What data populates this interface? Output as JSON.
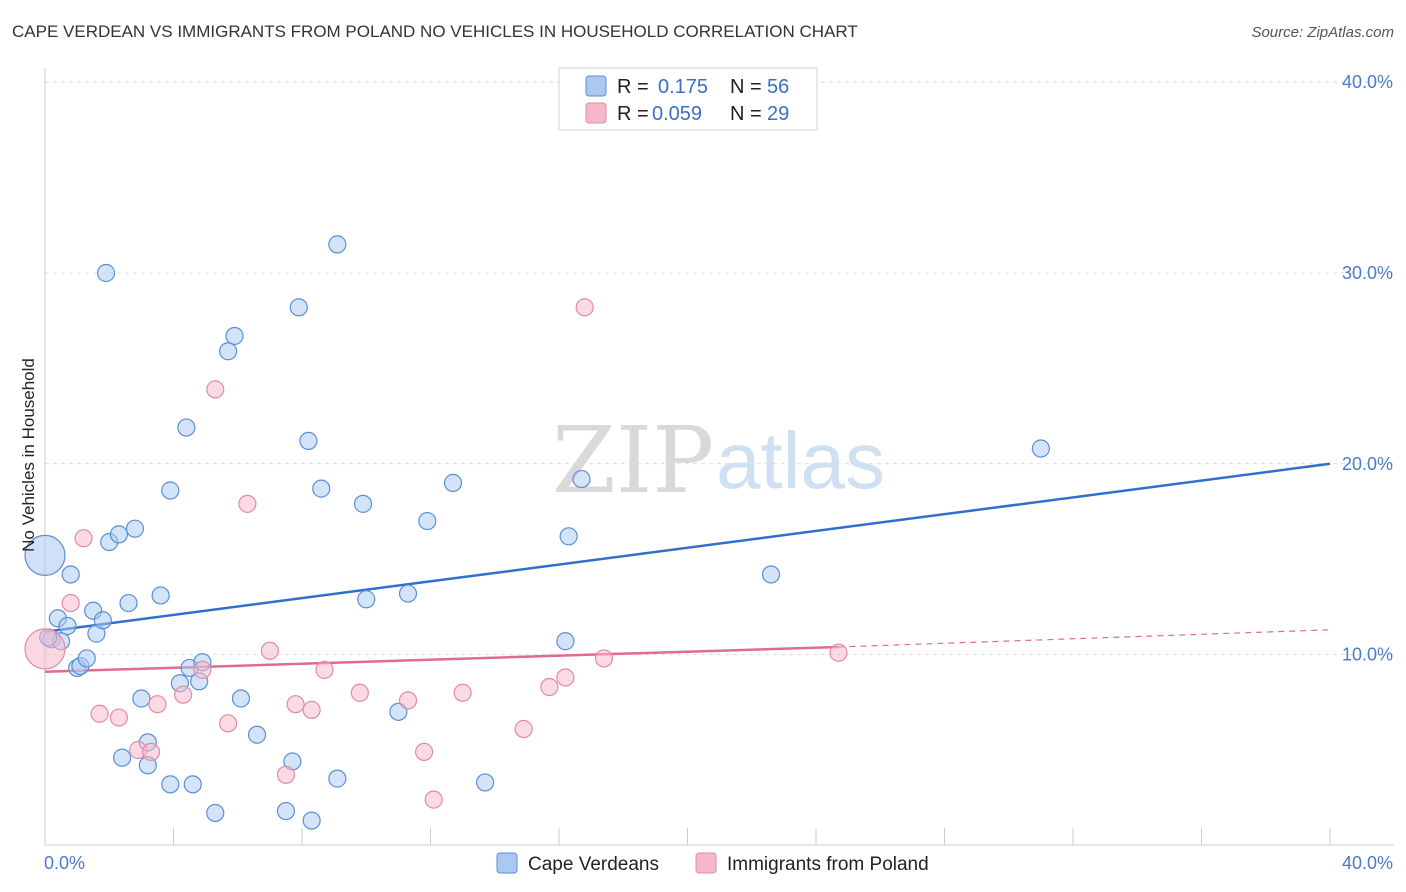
{
  "title": "CAPE VERDEAN VS IMMIGRANTS FROM POLAND NO VEHICLES IN HOUSEHOLD CORRELATION CHART",
  "source": "Source: ZipAtlas.com",
  "watermark": {
    "zip": "ZIP",
    "atlas": "atlas"
  },
  "legend": {
    "r_label": "R =",
    "n_label": "N =",
    "rows": [
      {
        "r": "0.175",
        "n": "56",
        "color": "#a9c9f1"
      },
      {
        "r": "0.059",
        "n": "29",
        "color": "#f5b8ca"
      }
    ]
  },
  "chart_data": {
    "type": "scatter",
    "title": "CAPE VERDEAN VS IMMIGRANTS FROM POLAND NO VEHICLES IN HOUSEHOLD CORRELATION CHART",
    "xlabel": "",
    "ylabel": "No Vehicles in Household",
    "xlim": [
      0,
      40
    ],
    "ylim": [
      0,
      40
    ],
    "x_tick_labels": [
      "0.0%",
      "40.0%"
    ],
    "y_tick_labels": [
      "10.0%",
      "20.0%",
      "30.0%",
      "40.0%"
    ],
    "y_ticks": [
      10,
      20,
      30,
      40
    ],
    "grid": true,
    "legend_position": "top-center",
    "series": [
      {
        "name": "Cape Verdeans",
        "color": "#a9c9f1",
        "stroke": "#5b8fd6",
        "trend": {
          "x": [
            0,
            40
          ],
          "y": [
            11.2,
            20.0
          ],
          "color": "#2f6fce"
        },
        "points": [
          [
            0.0,
            15.2
          ],
          [
            0.2,
            10.8
          ],
          [
            0.4,
            11.9
          ],
          [
            0.5,
            10.7
          ],
          [
            0.7,
            11.5
          ],
          [
            0.8,
            14.2
          ],
          [
            1.0,
            9.3
          ],
          [
            1.1,
            9.4
          ],
          [
            1.3,
            9.8
          ],
          [
            1.5,
            12.3
          ],
          [
            1.6,
            11.1
          ],
          [
            1.8,
            11.8
          ],
          [
            1.9,
            30.0
          ],
          [
            2.0,
            15.9
          ],
          [
            2.3,
            16.3
          ],
          [
            2.4,
            4.6
          ],
          [
            2.6,
            12.7
          ],
          [
            2.8,
            16.6
          ],
          [
            3.0,
            7.7
          ],
          [
            3.2,
            5.4
          ],
          [
            3.2,
            4.2
          ],
          [
            3.6,
            13.1
          ],
          [
            3.9,
            18.6
          ],
          [
            3.9,
            3.2
          ],
          [
            4.2,
            8.5
          ],
          [
            4.4,
            21.9
          ],
          [
            4.5,
            9.3
          ],
          [
            4.6,
            3.2
          ],
          [
            4.8,
            8.6
          ],
          [
            4.9,
            9.6
          ],
          [
            5.3,
            1.7
          ],
          [
            5.7,
            25.9
          ],
          [
            5.9,
            26.7
          ],
          [
            6.1,
            7.7
          ],
          [
            6.6,
            5.8
          ],
          [
            7.5,
            1.8
          ],
          [
            7.7,
            4.4
          ],
          [
            7.9,
            28.2
          ],
          [
            8.2,
            21.2
          ],
          [
            8.3,
            1.3
          ],
          [
            8.6,
            18.7
          ],
          [
            9.1,
            3.5
          ],
          [
            9.1,
            31.5
          ],
          [
            9.9,
            17.9
          ],
          [
            10.0,
            12.9
          ],
          [
            11.0,
            7.0
          ],
          [
            11.3,
            13.2
          ],
          [
            11.9,
            17.0
          ],
          [
            12.7,
            19.0
          ],
          [
            13.7,
            3.3
          ],
          [
            16.2,
            10.7
          ],
          [
            16.3,
            16.2
          ],
          [
            16.7,
            19.2
          ],
          [
            22.6,
            14.2
          ],
          [
            31.0,
            20.8
          ],
          [
            0.1,
            10.9
          ]
        ]
      },
      {
        "name": "Immigrants from Poland",
        "color": "#f5b8ca",
        "stroke": "#e38aa6",
        "trend": {
          "x": [
            0,
            24.7
          ],
          "y": [
            9.1,
            10.4
          ],
          "color": "#e06a92"
        },
        "trend_dashed": {
          "x": [
            24.7,
            40
          ],
          "y": [
            10.4,
            11.3
          ]
        },
        "points": [
          [
            0.0,
            10.3
          ],
          [
            0.8,
            12.7
          ],
          [
            1.2,
            16.1
          ],
          [
            1.7,
            6.9
          ],
          [
            2.3,
            6.7
          ],
          [
            2.9,
            5.0
          ],
          [
            3.3,
            4.9
          ],
          [
            3.5,
            7.4
          ],
          [
            4.3,
            7.9
          ],
          [
            4.9,
            9.2
          ],
          [
            5.3,
            23.9
          ],
          [
            5.7,
            6.4
          ],
          [
            6.3,
            17.9
          ],
          [
            7.0,
            10.2
          ],
          [
            7.5,
            3.7
          ],
          [
            7.8,
            7.4
          ],
          [
            8.3,
            7.1
          ],
          [
            8.7,
            9.2
          ],
          [
            9.8,
            8.0
          ],
          [
            11.3,
            7.6
          ],
          [
            11.8,
            4.9
          ],
          [
            12.1,
            2.4
          ],
          [
            13.0,
            8.0
          ],
          [
            14.9,
            6.1
          ],
          [
            15.7,
            8.3
          ],
          [
            16.2,
            8.8
          ],
          [
            16.8,
            28.2
          ],
          [
            17.4,
            9.8
          ],
          [
            24.7,
            10.1
          ]
        ]
      }
    ]
  },
  "bottom_legend": [
    "Cape Verdeans",
    "Immigrants from Poland"
  ]
}
